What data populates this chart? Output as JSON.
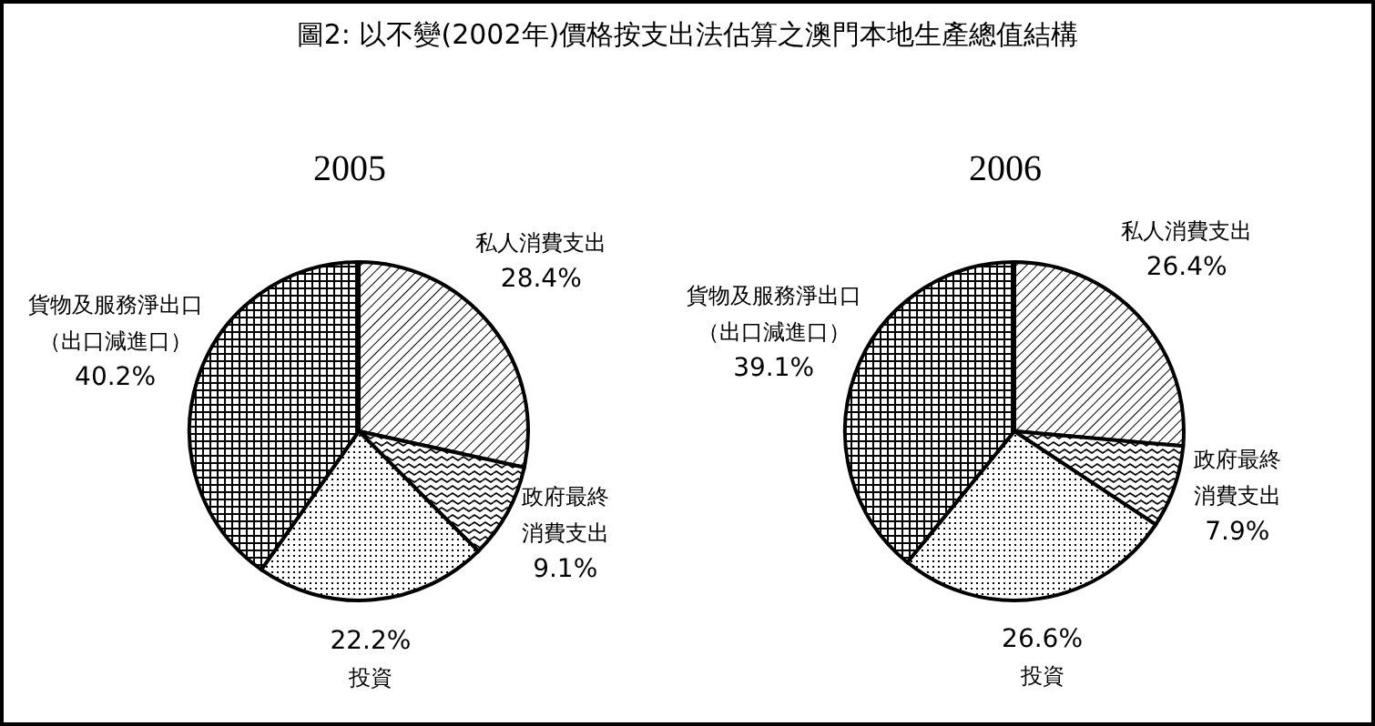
{
  "chart_data": [
    {
      "type": "pie",
      "title": "圖2: 以不變(2002年)價格按支出法估算之澳門本地生產總值結構",
      "subtitle": "2005",
      "categories": [
        "私人消費支出",
        "政府最終消費支出",
        "投資",
        "貨物及服務淨出口（出口減進口）"
      ],
      "values": [
        28.4,
        9.1,
        22.2,
        40.2
      ],
      "value_labels": [
        "28.4%",
        "9.1%",
        "22.2%",
        "40.2%"
      ],
      "colors": [
        "#000000",
        "#000000",
        "#000000",
        "#000000"
      ]
    },
    {
      "type": "pie",
      "title": "2006",
      "categories": [
        "私人消費支出",
        "政府最終消費支出",
        "投資",
        "貨物及服務淨出口（出口減進口）"
      ],
      "values": [
        26.4,
        7.9,
        26.6,
        39.1
      ],
      "value_labels": [
        "26.4%",
        "7.9%",
        "26.6%",
        "39.1%"
      ],
      "colors": [
        "#000000",
        "#000000",
        "#000000",
        "#000000"
      ]
    }
  ]
}
